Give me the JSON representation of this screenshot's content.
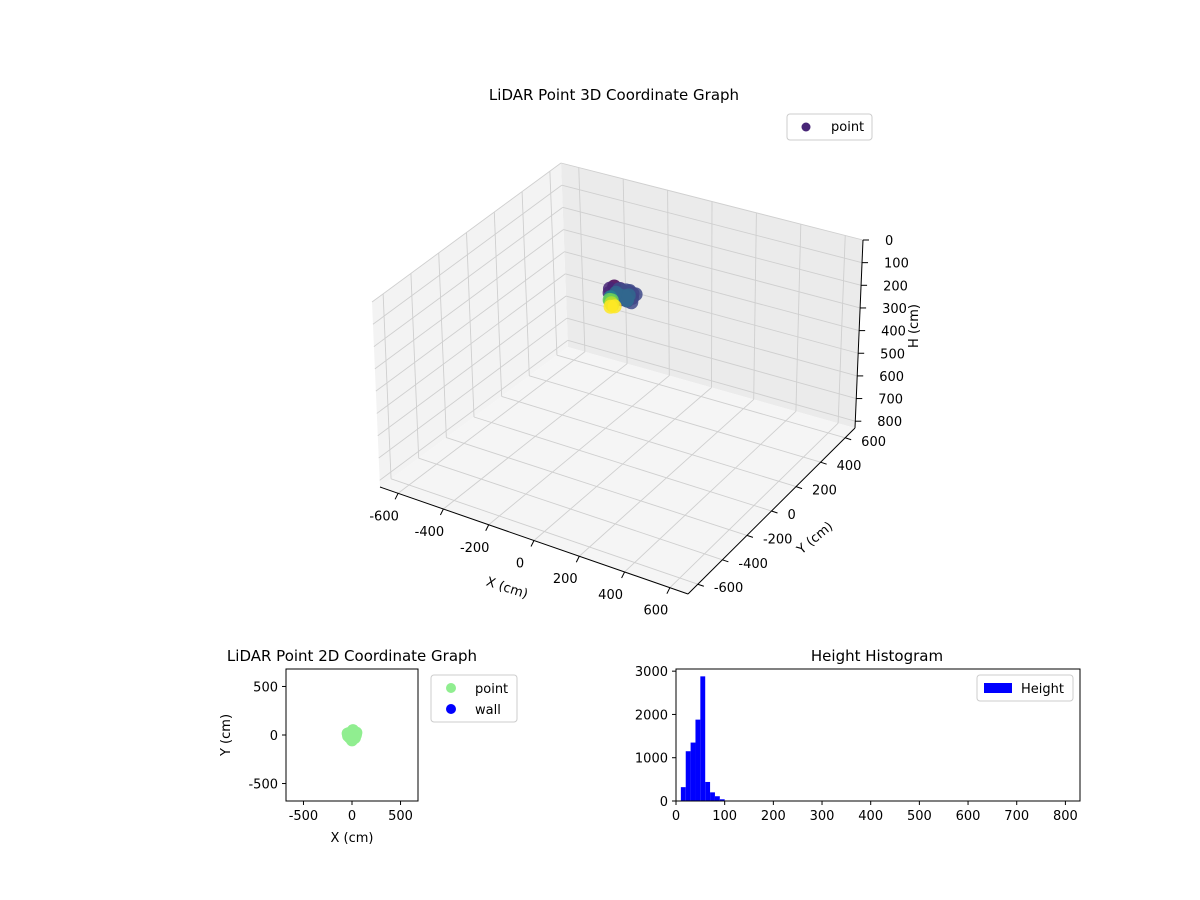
{
  "chart_data": [
    {
      "type": "scatter",
      "title": "LiDAR Point 3D Coordinate Graph",
      "xlabel": "X (cm)",
      "ylabel": "Y (cm)",
      "zlabel": "H (cm)",
      "xlim": [
        -680,
        680
      ],
      "ylim": [
        -680,
        680
      ],
      "zlim": [
        0,
        830
      ],
      "z_inverted": true,
      "x_ticks": [
        -600,
        -400,
        -200,
        0,
        200,
        400,
        600
      ],
      "y_ticks": [
        -600,
        -400,
        -200,
        0,
        200,
        400,
        600
      ],
      "z_ticks": [
        0,
        100,
        200,
        300,
        400,
        500,
        600,
        700,
        800
      ],
      "grid": true,
      "legend": {
        "position": "top-right",
        "entries": [
          "point"
        ]
      },
      "colormap": "viridis",
      "series": [
        {
          "name": "point",
          "points": [
            [
              -40,
              10,
              30
            ],
            [
              -20,
              20,
              40
            ],
            [
              0,
              30,
              45
            ],
            [
              20,
              20,
              40
            ],
            [
              40,
              10,
              35
            ],
            [
              50,
              -10,
              40
            ],
            [
              40,
              -30,
              45
            ],
            [
              20,
              -40,
              40
            ],
            [
              0,
              -45,
              40
            ],
            [
              -20,
              -40,
              45
            ],
            [
              -40,
              -25,
              40
            ],
            [
              -50,
              -5,
              35
            ],
            [
              -30,
              30,
              50
            ],
            [
              10,
              40,
              50
            ],
            [
              45,
              25,
              45
            ],
            [
              55,
              -25,
              50
            ],
            [
              -10,
              0,
              55
            ],
            [
              10,
              5,
              55
            ],
            [
              -25,
              5,
              60
            ],
            [
              25,
              -5,
              60
            ],
            [
              0,
              -20,
              50
            ],
            [
              -15,
              -30,
              55
            ],
            [
              30,
              -15,
              55
            ],
            [
              -35,
              15,
              60
            ],
            [
              15,
              25,
              60
            ],
            [
              -45,
              -10,
              70
            ],
            [
              -40,
              -20,
              80
            ],
            [
              -45,
              0,
              90
            ],
            [
              -35,
              -15,
              100
            ],
            [
              -30,
              -5,
              110
            ],
            [
              -40,
              -12,
              95
            ],
            [
              -50,
              -8,
              85
            ],
            [
              -38,
              -22,
              105
            ]
          ]
        }
      ]
    },
    {
      "type": "scatter",
      "title": "LiDAR Point 2D Coordinate Graph",
      "xlabel": "X (cm)",
      "ylabel": "Y (cm)",
      "xlim": [
        -680,
        680
      ],
      "ylim": [
        -680,
        680
      ],
      "x_ticks": [
        -500,
        0,
        500
      ],
      "y_ticks": [
        -500,
        0,
        500
      ],
      "grid": false,
      "legend": {
        "position": "outside-right",
        "entries": [
          "point",
          "wall"
        ]
      },
      "series": [
        {
          "name": "point",
          "color": "#90ee90",
          "shape": "roughly circular cluster centered near origin, radius ~60 cm"
        },
        {
          "name": "wall",
          "color": "#0000ff",
          "points": []
        }
      ]
    },
    {
      "type": "bar",
      "title": "Height Histogram",
      "xlabel": "",
      "ylabel": "",
      "xlim": [
        0,
        830
      ],
      "ylim": [
        0,
        3050
      ],
      "x_ticks": [
        0,
        100,
        200,
        300,
        400,
        500,
        600,
        700,
        800
      ],
      "y_ticks": [
        0,
        1000,
        2000,
        3000
      ],
      "bin_width": 10,
      "bin_edges_start": 0,
      "legend": {
        "position": "top-right",
        "entries": [
          "Height"
        ]
      },
      "series": [
        {
          "name": "Height",
          "color": "#0000ff",
          "counts": [
            0,
            320,
            1150,
            1350,
            1880,
            2880,
            440,
            200,
            110,
            40,
            10,
            3
          ]
        }
      ]
    }
  ]
}
